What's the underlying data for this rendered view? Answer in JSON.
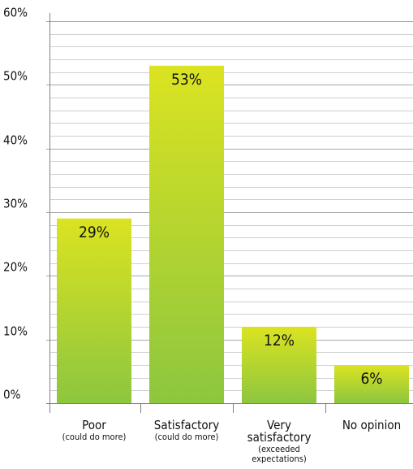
{
  "chart_data": {
    "type": "bar",
    "title": "",
    "xlabel": "",
    "ylabel": "",
    "categories": [
      {
        "main": [
          "Poor"
        ],
        "sub": [
          "(could do more)"
        ]
      },
      {
        "main": [
          "Satisfactory"
        ],
        "sub": [
          "(could do more)"
        ]
      },
      {
        "main": [
          "Very",
          "satisfactory"
        ],
        "sub": [
          "(exceeded",
          "expectations)"
        ]
      },
      {
        "main": [
          "No opinion"
        ],
        "sub": []
      }
    ],
    "values": [
      29,
      53,
      12,
      6
    ],
    "value_labels": [
      "29%",
      "53%",
      "12%",
      "6%"
    ],
    "ylim": [
      0,
      60
    ],
    "y_ticks": [
      0,
      10,
      20,
      30,
      40,
      50,
      60
    ],
    "y_tick_labels": [
      "0%",
      "10%",
      "20%",
      "30%",
      "40%",
      "50%",
      "60%"
    ],
    "grid": true,
    "colors": {
      "bar_top": "#dbe321",
      "bar_bottom": "#8dc63f",
      "grid_major": "#a8a8a8",
      "grid_minor": "#cfcfcf",
      "axis": "#808080"
    }
  }
}
